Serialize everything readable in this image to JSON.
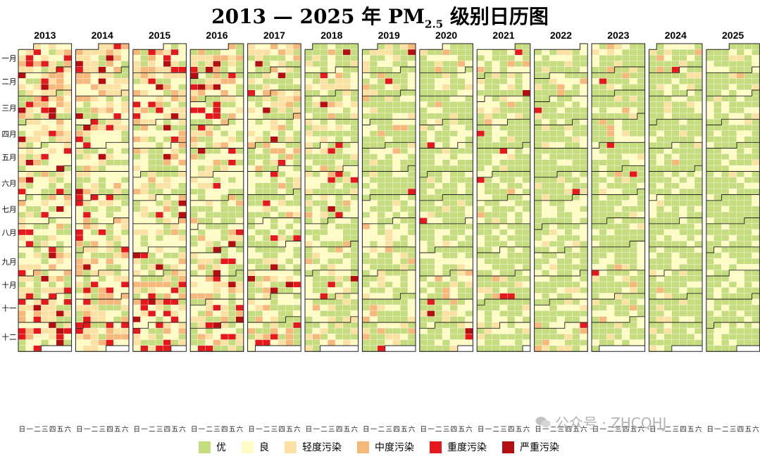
{
  "title_main": "2013 — 2025 年 PM",
  "title_sub": "2.5",
  "title_tail": " 级别日历图",
  "watermark": "公众号 · ZHCQHJ",
  "chart_data": {
    "type": "heatmap",
    "title": "2013 — 2025 年 PM2.5 级别日历图",
    "years": [
      "2013",
      "2014",
      "2015",
      "2016",
      "2017",
      "2018",
      "2019",
      "2020",
      "2021",
      "2022",
      "2023",
      "2024",
      "2025"
    ],
    "month_labels": [
      "一月",
      "二月",
      "三月",
      "四月",
      "五月",
      "六月",
      "七月",
      "八月",
      "九月",
      "十月",
      "十一",
      "十二"
    ],
    "weekday_labels": [
      "日",
      "一",
      "二",
      "三",
      "四",
      "五",
      "六"
    ],
    "levels": [
      "优",
      "良",
      "轻度污染",
      "中度污染",
      "重度污染",
      "严重污染"
    ],
    "level_colors": [
      "#c6dd7f",
      "#fffbc5",
      "#fbe1a2",
      "#f7b87b",
      "#e5191c",
      "#b40e10"
    ],
    "pollution_probabilities_by_year": {
      "2013": [
        0.18,
        0.3,
        0.24,
        0.14,
        0.11,
        0.03
      ],
      "2014": [
        0.22,
        0.33,
        0.22,
        0.12,
        0.08,
        0.03
      ],
      "2015": [
        0.24,
        0.33,
        0.2,
        0.12,
        0.08,
        0.03
      ],
      "2016": [
        0.3,
        0.33,
        0.17,
        0.1,
        0.07,
        0.03
      ],
      "2017": [
        0.4,
        0.32,
        0.14,
        0.08,
        0.04,
        0.02
      ],
      "2018": [
        0.46,
        0.32,
        0.12,
        0.06,
        0.03,
        0.01
      ],
      "2019": [
        0.54,
        0.3,
        0.1,
        0.04,
        0.015,
        0.005
      ],
      "2020": [
        0.58,
        0.28,
        0.08,
        0.035,
        0.02,
        0.005
      ],
      "2021": [
        0.62,
        0.26,
        0.07,
        0.03,
        0.015,
        0.005
      ],
      "2022": [
        0.64,
        0.26,
        0.07,
        0.025,
        0.005,
        0
      ],
      "2023": [
        0.62,
        0.27,
        0.07,
        0.03,
        0.01,
        0
      ],
      "2024": [
        0.7,
        0.23,
        0.05,
        0.015,
        0.005,
        0
      ],
      "2025": [
        0.74,
        0.2,
        0.045,
        0.01,
        0.005,
        0
      ]
    }
  },
  "legend": [
    {
      "label": "优",
      "color": "#c6dd7f"
    },
    {
      "label": "良",
      "color": "#fffbc5"
    },
    {
      "label": "轻度污染",
      "color": "#fbe1a2"
    },
    {
      "label": "中度污染",
      "color": "#f7b87b"
    },
    {
      "label": "重度污染",
      "color": "#e5191c"
    },
    {
      "label": "严重污染",
      "color": "#b40e10"
    }
  ]
}
